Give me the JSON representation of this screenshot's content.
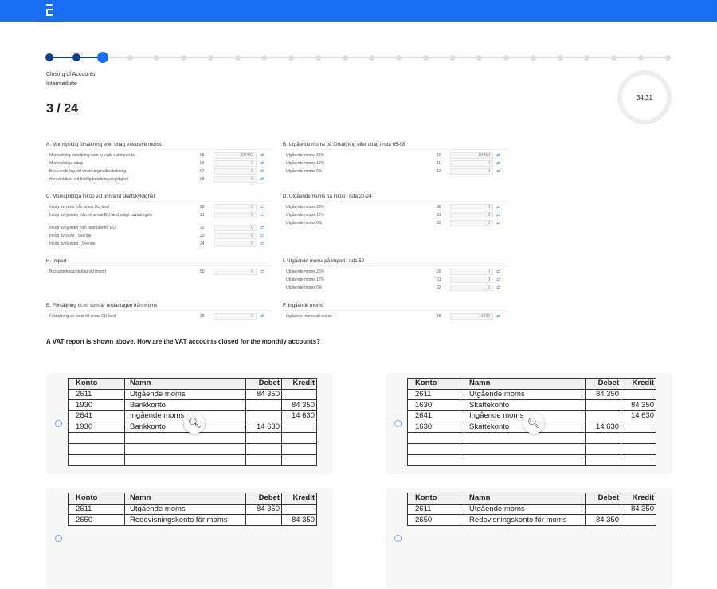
{
  "header": {
    "brand_color": "#1a6ef5"
  },
  "progress": {
    "total": 24,
    "current": 3
  },
  "course": {
    "title": "Closing of Accounts",
    "level": "Intermediate"
  },
  "counter": "3 / 24",
  "timer": "34:31",
  "sections": [
    {
      "id": "A",
      "title": "A. Momspliktig försäljning eller uttag exklusive moms",
      "col": 0,
      "top": 178,
      "rows": [
        {
          "label": "Momspliktig försäljning som ej ingår i annan ruta",
          "code": "05",
          "value": "337402"
        },
        {
          "label": "Momspliktiga uttag",
          "code": "06",
          "value": "0"
        },
        {
          "label": "Besk.underlag vid vinstmarginalbeskattning",
          "code": "07",
          "value": "0"
        },
        {
          "label": "Hyresintäkter vid frivillig betalningsskyldighet",
          "code": "08",
          "value": "0"
        }
      ]
    },
    {
      "id": "C",
      "title": "C. Momspliktiga inköp vid omvänd skattskyldighet",
      "col": 0,
      "top": 243,
      "rows": [
        {
          "label": "Inköp av varor från annat EU-land",
          "code": "20",
          "value": "0"
        },
        {
          "label": "Inköp av tjänster från ett annat EU-land enligt huvudregeln",
          "code": "21",
          "value": "0",
          "tall": true
        },
        {
          "label": "Inköp av tjänster från land utanför EU",
          "code": "22",
          "value": "0"
        },
        {
          "label": "Inköp av varor i Sverige",
          "code": "23",
          "value": "0"
        },
        {
          "label": "Inköp av tjänster i Sverige",
          "code": "24",
          "value": "0"
        }
      ]
    },
    {
      "id": "H",
      "title": "H. Import",
      "col": 0,
      "top": 324,
      "rows": [
        {
          "label": "Beskattningsunderlag vid import",
          "code": "50",
          "value": "0"
        }
      ]
    },
    {
      "id": "E",
      "title": "E. Försäljning m.m. som är undantagen från moms",
      "col": 0,
      "top": 380,
      "rows": [
        {
          "label": "Försäljning av varor till annat EU-land",
          "code": "35",
          "value": "0"
        }
      ]
    },
    {
      "id": "B",
      "title": "B. Utgående moms på försäljning eller uttag i ruta 05-08",
      "col": 1,
      "top": 178,
      "rows": [
        {
          "label": "Utgående moms 25%",
          "code": "10",
          "value": "84350"
        },
        {
          "label": "Utgående moms 12%",
          "code": "11",
          "value": "0"
        },
        {
          "label": "Utgående moms 6%",
          "code": "12",
          "value": "0"
        }
      ]
    },
    {
      "id": "D",
      "title": "D. Utgående moms på inköp i ruta 20-24",
      "col": 1,
      "top": 243,
      "rows": [
        {
          "label": "Utgående moms 25%",
          "code": "30",
          "value": "0"
        },
        {
          "label": "Utgående moms 12%",
          "code": "31",
          "value": "0"
        },
        {
          "label": "Utgående moms 6%",
          "code": "32",
          "value": "0"
        }
      ]
    },
    {
      "id": "I",
      "title": "I. Utgående moms på import i ruta 50",
      "col": 1,
      "top": 324,
      "rows": [
        {
          "label": "Utgående moms 25%",
          "code": "60",
          "value": "0"
        },
        {
          "label": "Utgående moms 12%",
          "code": "61",
          "value": "0"
        },
        {
          "label": "Utgående moms 6%",
          "code": "62",
          "value": "0"
        }
      ]
    },
    {
      "id": "F",
      "title": "F. Ingående moms",
      "col": 1,
      "top": 380,
      "rows": [
        {
          "label": "Ingående moms att dra av",
          "code": "48",
          "value": "14630"
        }
      ]
    }
  ],
  "question": "A VAT report is shown above. How are the VAT accounts closed for the monthly accounts?",
  "table_headers": [
    "Konto",
    "Namn",
    "Debet",
    "Kredit"
  ],
  "options": [
    {
      "rows": [
        [
          "2611",
          "Utgående moms",
          "84 350",
          ""
        ],
        [
          "1930",
          "Bankkonto",
          "",
          "84 350"
        ],
        [
          "2641",
          "Ingående moms",
          "",
          "14 630"
        ],
        [
          "1930",
          "Bankkonto",
          "14 630",
          ""
        ],
        [
          "",
          "",
          "",
          ""
        ],
        [
          "",
          "",
          "",
          ""
        ],
        [
          "",
          "",
          "",
          ""
        ]
      ]
    },
    {
      "rows": [
        [
          "2611",
          "Utgående moms",
          "84 350",
          ""
        ],
        [
          "1630",
          "Skattekonto",
          "",
          "84 350"
        ],
        [
          "2641",
          "Ingående moms",
          "",
          "14 630"
        ],
        [
          "1630",
          "Skattekonto",
          "14 630",
          ""
        ],
        [
          "",
          "",
          "",
          ""
        ],
        [
          "",
          "",
          "",
          ""
        ],
        [
          "",
          "",
          "",
          ""
        ]
      ]
    },
    {
      "rows": [
        [
          "2611",
          "Utgående moms",
          "84 350",
          ""
        ],
        [
          "2650",
          "Redovisningskonto för moms",
          "",
          "84 350"
        ]
      ]
    },
    {
      "rows": [
        [
          "2611",
          "Utgående moms",
          "",
          "84 350"
        ],
        [
          "2650",
          "Redovisningskonto för moms",
          "84 350",
          ""
        ]
      ]
    }
  ]
}
